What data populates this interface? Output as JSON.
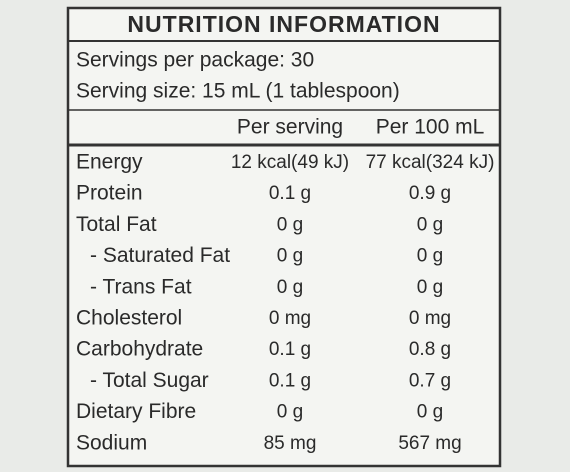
{
  "header": {
    "title": "NUTRITION INFORMATION"
  },
  "servings": [
    "Servings per package: 30",
    "Serving size: 15 mL (1 tablespoon)"
  ],
  "table": {
    "columns": [
      "Per serving",
      "Per 100 mL"
    ],
    "rows": [
      [
        "Energy",
        "12 kcal(49 kJ)",
        "77 kcal(324 kJ)"
      ],
      [
        "Protein",
        "0.1 g",
        "0.9 g"
      ],
      [
        "Total Fat",
        "0 g",
        "0 g"
      ],
      [
        "- Saturated Fat",
        "0 g",
        "0 g"
      ],
      [
        "- Trans Fat",
        "0 g",
        "0 g"
      ],
      [
        "Cholesterol",
        "0 mg",
        "0 mg"
      ],
      [
        "Carbohydrate",
        "0.1 g",
        "0.8 g"
      ],
      [
        "- Total Sugar",
        "0.1 g",
        "0.7 g"
      ],
      [
        "Dietary Fibre",
        "0 g",
        "0 g"
      ],
      [
        "Sodium",
        "85 mg",
        "567 mg"
      ]
    ]
  }
}
